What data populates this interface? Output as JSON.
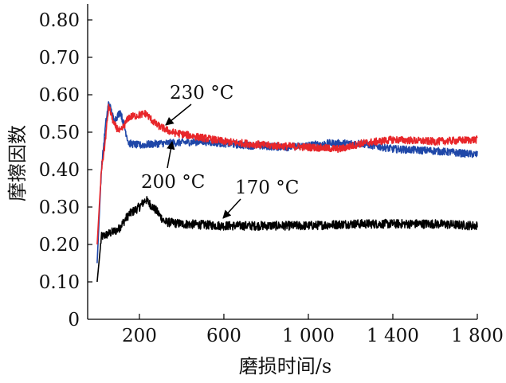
{
  "chart_data": {
    "type": "line",
    "title": "",
    "xlabel": "磨损时间/s",
    "ylabel": "摩擦因数",
    "xlim": [
      -45,
      1800
    ],
    "ylim": [
      0,
      0.8
    ],
    "grid": false,
    "x_ticks": [
      200,
      600,
      1000,
      1400,
      1800
    ],
    "x_tick_labels": [
      "200",
      "600",
      "1 000",
      "1 400",
      "1 800"
    ],
    "y_ticks": [
      0,
      0.1,
      0.2,
      0.3,
      0.4,
      0.5,
      0.6,
      0.7,
      0.8
    ],
    "y_tick_labels": [
      "0",
      "0.10",
      "0.20",
      "0.30",
      "0.40",
      "0.50",
      "0.60",
      "0.70",
      "0.80"
    ],
    "series": [
      {
        "name": "170 °C",
        "color": "#000000",
        "noise": 0.012,
        "x": [
          0,
          20,
          60,
          100,
          150,
          200,
          230,
          280,
          320,
          400,
          600,
          800,
          1000,
          1200,
          1400,
          1600,
          1800
        ],
        "y": [
          0.1,
          0.22,
          0.23,
          0.24,
          0.28,
          0.3,
          0.32,
          0.29,
          0.26,
          0.255,
          0.25,
          0.25,
          0.25,
          0.255,
          0.255,
          0.255,
          0.25
        ]
      },
      {
        "name": "200 °C",
        "color": "#1f47a8",
        "noise": 0.01,
        "x": [
          0,
          20,
          40,
          55,
          80,
          110,
          150,
          200,
          300,
          500,
          700,
          900,
          1100,
          1250,
          1400,
          1600,
          1800
        ],
        "y": [
          0.15,
          0.4,
          0.52,
          0.58,
          0.53,
          0.555,
          0.47,
          0.465,
          0.47,
          0.475,
          0.465,
          0.46,
          0.47,
          0.47,
          0.455,
          0.45,
          0.44
        ]
      },
      {
        "name": "230 °C",
        "color": "#e8262a",
        "noise": 0.01,
        "x": [
          0,
          20,
          35,
          55,
          80,
          110,
          150,
          230,
          280,
          350,
          450,
          600,
          800,
          1000,
          1150,
          1250,
          1400,
          1600,
          1800
        ],
        "y": [
          0.2,
          0.4,
          0.46,
          0.57,
          0.52,
          0.5,
          0.54,
          0.55,
          0.52,
          0.5,
          0.49,
          0.475,
          0.465,
          0.46,
          0.455,
          0.47,
          0.48,
          0.475,
          0.48
        ]
      }
    ],
    "annotations": [
      {
        "text": "230 °C",
        "target_series": "230 °C"
      },
      {
        "text": "200 °C",
        "target_series": "200 °C"
      },
      {
        "text": "170 °C",
        "target_series": "170 °C"
      }
    ]
  }
}
